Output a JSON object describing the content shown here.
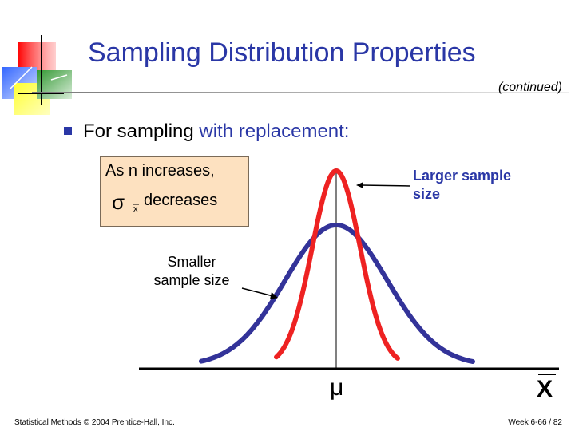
{
  "slide": {
    "title": "Sampling Distribution Properties",
    "subtitle": "(continued)",
    "bullet": {
      "text_main": "For sampling ",
      "text_accent": "with replacement:"
    },
    "callout": {
      "line1": "As n  increases,",
      "sigma": "σ",
      "subscript": "x",
      "line2": "decreases"
    },
    "labels": {
      "larger_sample_line1": "Larger sample",
      "larger_sample_line2": "size",
      "smaller_sample_line1": "Smaller",
      "smaller_sample_line2": "sample size",
      "mu": "μ",
      "xbar": "X"
    },
    "footer": {
      "left": "Statistical Methods © 2004 Prentice-Hall, Inc.",
      "right": "Week 6-66 / 82"
    }
  },
  "colors": {
    "title_blue": "#2a37a6",
    "curve_blue": "#333399",
    "curve_red": "#ee2222",
    "callout_fill": "#fde1c0",
    "logo_red": "#ff0000",
    "logo_blue": "#3366ff",
    "logo_yellow": "#ffff33",
    "logo_green": "#339933"
  },
  "diagram": {
    "curves": [
      {
        "name": "Larger sample size",
        "relative_spread": "narrow",
        "color": "#ee2222"
      },
      {
        "name": "Smaller sample size",
        "relative_spread": "wide",
        "color": "#333399"
      }
    ]
  }
}
